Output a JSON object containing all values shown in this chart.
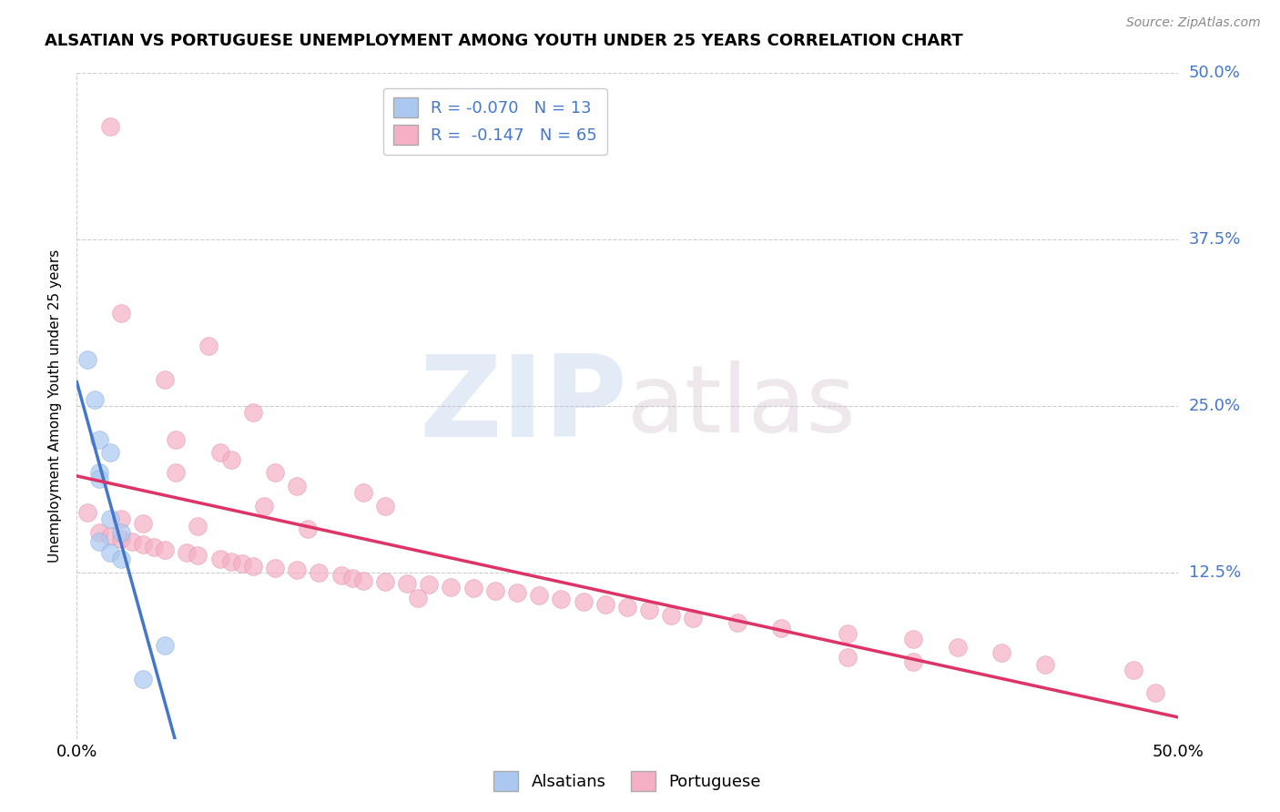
{
  "title": "ALSATIAN VS PORTUGUESE UNEMPLOYMENT AMONG YOUTH UNDER 25 YEARS CORRELATION CHART",
  "source": "Source: ZipAtlas.com",
  "ylabel": "Unemployment Among Youth under 25 years",
  "alsatian_R": -0.07,
  "alsatian_N": 13,
  "portuguese_R": -0.147,
  "portuguese_N": 65,
  "alsatian_color": "#aac8f0",
  "alsatian_edge": "#88aade",
  "portuguese_color": "#f5b0c5",
  "portuguese_edge": "#e090a8",
  "alsatian_line_color": "#4477cc",
  "portuguese_line_color": "#dd3366",
  "legend_label_alsatian": "Alsatians",
  "legend_label_portuguese": "Portuguese",
  "alsatian_points": [
    [
      0.005,
      0.285
    ],
    [
      0.008,
      0.255
    ],
    [
      0.01,
      0.225
    ],
    [
      0.015,
      0.215
    ],
    [
      0.01,
      0.2
    ],
    [
      0.01,
      0.195
    ],
    [
      0.015,
      0.165
    ],
    [
      0.02,
      0.155
    ],
    [
      0.01,
      0.148
    ],
    [
      0.015,
      0.14
    ],
    [
      0.02,
      0.135
    ],
    [
      0.04,
      0.07
    ],
    [
      0.03,
      0.045
    ]
  ],
  "portuguese_points": [
    [
      0.015,
      0.46
    ],
    [
      0.02,
      0.32
    ],
    [
      0.06,
      0.295
    ],
    [
      0.04,
      0.27
    ],
    [
      0.08,
      0.245
    ],
    [
      0.045,
      0.225
    ],
    [
      0.065,
      0.215
    ],
    [
      0.07,
      0.21
    ],
    [
      0.045,
      0.2
    ],
    [
      0.09,
      0.2
    ],
    [
      0.1,
      0.19
    ],
    [
      0.13,
      0.185
    ],
    [
      0.085,
      0.175
    ],
    [
      0.14,
      0.175
    ],
    [
      0.005,
      0.17
    ],
    [
      0.02,
      0.165
    ],
    [
      0.03,
      0.162
    ],
    [
      0.055,
      0.16
    ],
    [
      0.105,
      0.158
    ],
    [
      0.01,
      0.155
    ],
    [
      0.015,
      0.152
    ],
    [
      0.02,
      0.15
    ],
    [
      0.025,
      0.148
    ],
    [
      0.03,
      0.146
    ],
    [
      0.035,
      0.144
    ],
    [
      0.04,
      0.142
    ],
    [
      0.05,
      0.14
    ],
    [
      0.055,
      0.138
    ],
    [
      0.065,
      0.135
    ],
    [
      0.07,
      0.133
    ],
    [
      0.075,
      0.132
    ],
    [
      0.08,
      0.13
    ],
    [
      0.09,
      0.128
    ],
    [
      0.1,
      0.127
    ],
    [
      0.11,
      0.125
    ],
    [
      0.12,
      0.123
    ],
    [
      0.125,
      0.121
    ],
    [
      0.13,
      0.119
    ],
    [
      0.14,
      0.118
    ],
    [
      0.15,
      0.117
    ],
    [
      0.16,
      0.116
    ],
    [
      0.17,
      0.114
    ],
    [
      0.18,
      0.113
    ],
    [
      0.19,
      0.111
    ],
    [
      0.2,
      0.11
    ],
    [
      0.21,
      0.108
    ],
    [
      0.155,
      0.106
    ],
    [
      0.22,
      0.105
    ],
    [
      0.23,
      0.103
    ],
    [
      0.24,
      0.101
    ],
    [
      0.25,
      0.099
    ],
    [
      0.26,
      0.097
    ],
    [
      0.27,
      0.093
    ],
    [
      0.28,
      0.091
    ],
    [
      0.3,
      0.087
    ],
    [
      0.32,
      0.083
    ],
    [
      0.35,
      0.079
    ],
    [
      0.38,
      0.075
    ],
    [
      0.4,
      0.069
    ],
    [
      0.42,
      0.065
    ],
    [
      0.35,
      0.061
    ],
    [
      0.38,
      0.058
    ],
    [
      0.44,
      0.056
    ],
    [
      0.48,
      0.052
    ],
    [
      0.49,
      0.035
    ]
  ],
  "watermark_zip": "ZIP",
  "watermark_atlas": "atlas",
  "background_color": "#ffffff",
  "grid_color": "#cccccc",
  "xlim": [
    0.0,
    0.5
  ],
  "ylim": [
    0.0,
    0.5
  ],
  "ytick_values": [
    0.0,
    0.125,
    0.25,
    0.375,
    0.5
  ],
  "ytick_labels": [
    "0.0%",
    "12.5%",
    "25.0%",
    "37.5%",
    "50.0%"
  ],
  "xtick_values": [
    0.0,
    0.5
  ],
  "xtick_labels": [
    "0.0%",
    "50.0%"
  ]
}
